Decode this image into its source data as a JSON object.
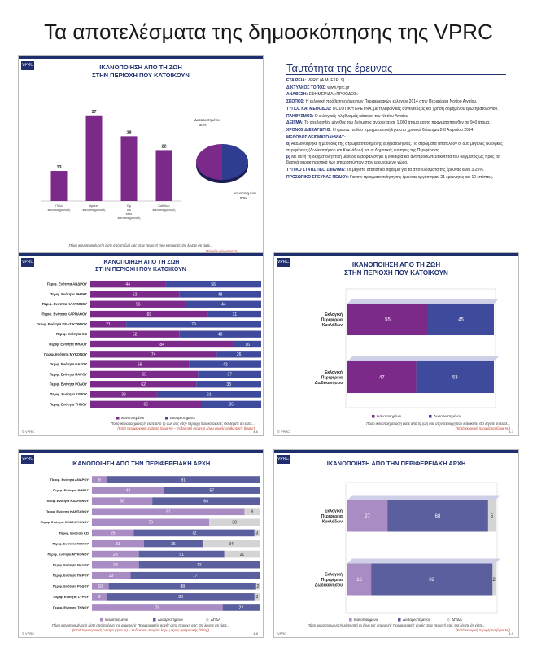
{
  "page_title": "Τα αποτελέσματα της δημοσκόπησης της VPRC",
  "logo_text": "VPRC",
  "identity": {
    "title": "Ταυτότητα της έρευνας",
    "rows": [
      {
        "k": "ΕΤΑΙΡΕΙΑ:",
        "v": " VPRC (Α.Μ. ΕΣΡ: 9)"
      },
      {
        "k": "ΔΙΚΤΥΑΚΟΣ ΤΟΠΟΣ:",
        "v": " www.vprc.gr"
      },
      {
        "k": "ΑΝΑΘΕΣΗ:",
        "v": " ΕΦΗΜΕΡΙΔΑ «ΠΡΟΟΔΟΣ»"
      },
      {
        "k": "ΣΚΟΠΟΣ:",
        "v": " Η εκλογική πρόθεση ενόψει των Περιφερειακών εκλογών 2014 στην Περιφέρεια Νοτίου Αιγαίου."
      },
      {
        "k": "ΤΥΠΟΣ ΚΑΙ ΜΕΘΟΔΟΣ:",
        "v": " ΠΟΣΟΤΙΚΗ ΕΡΕΥΝΑ, με τηλεφωνικές συνεντεύξεις και χρήση δομημένου ερωτηματολογίου."
      },
      {
        "k": "ΠΛΗΘΥΣΜΟΣ:",
        "v": " Ο εκλογικός πληθυσμός κάτοικοι του Νοτίου Αιγαίου"
      },
      {
        "k": "ΔΕΙΓΜΑ:",
        "v": " Το σχεδιασθέν μέγεθος του δείγματος ανέρχεται σε 1.000 άτομα και το πραγματοποιηθέν σε 940 άτομα."
      },
      {
        "k": "ΧΡΟΝΟΣ ΔΙΕΞΑΓΩΓΗΣ:",
        "v": " Η έρευνα πεδίου πραγματοποιήθηκε στο χρονικό διάστημα 2-8 Απριλίου 2014."
      },
      {
        "k": "ΜΕΘΟΔΟΣ ΔΕΙΓΜΑΤΟΛΗΨΙΑΣ:",
        "v": ""
      },
      {
        "k": "α)",
        "v": " Ακολουθήθηκε η μέθοδος της στρωματοποιημένης δειγματοληψίας. Το στρώματα αποτελούν οι δύο μεγάλες εκλογικές περιφέρειες (Δωδεκανήσου και Κυκλάδων) και οι Δημοτικές ενότητες της Περιφέρειας."
      },
      {
        "k": "β)",
        "v": " Με αυτή τη δειγματοληπτική μέθοδο εξασφαλίστηκε η ευκαιρία και αντιπροσωπευτικότητα του δείγματος ως προς τα βασικά χαρακτηριστικά των επικρατούντων στον ερευνώμενο χώρο."
      },
      {
        "k": "ΤΥΠΙΚΟ ΣΤΑΤΙΣΤΙΚΟ ΣΦΑΛΜΑ:",
        "v": " Το μέγιστο στατιστικό σφάλμα για τα αποτελέσματα της έρευνας είναι 3,25%."
      },
      {
        "k": "ΠΡΟΣΩΠΙΚΟ ΕΡΕΥΝΑΣ ΠΕΔΙΟΥ:",
        "v": " Για την πραγματοποίηση της έρευνας εργάστηκαν 21 ερευνητές και 10 επόπτες."
      }
    ]
  },
  "slides": {
    "s1": {
      "title": "ΙΚΑΝΟΠΟΙΗΣΗ ΑΠΟ ΤΗ ΖΩΗ",
      "subtitle": "ΣΤΗΝ ΠΕΡΙΟΧΗ ΠΟΥ ΚΑΤΟΙΚΟΥΝ",
      "footnote": "Πόσο ικανοποιημένος/η είστε από τη ζωή σας στην περιοχή που κατοικείτε; Θα λέγατε ότι είστε...",
      "note": "(Σύνολο δείγματος %)",
      "foot_left": "© VPRC",
      "foot_right": "4-5"
    },
    "s2": {
      "title": "ΙΚΑΝΟΠΟΙΗΣΗ ΑΠΟ ΤΗ ΖΩΗ",
      "subtitle": "ΣΤΗΝ ΠΕΡΙΟΧΗ ΠΟΥ ΚΑΤΟΙΚΟΥΝ",
      "footnote": "Πόσο ικανοποιημένος/η είστε από τη ζωή σας στην περιοχή που κατοικείτε; Θα λέγατε ότι είστε...",
      "note": "(Κατά περιφερειακή ενότητα (όρια %) – Ενδεικτική στοιχεία λόγω μικρής αριθμητικής βάσης)",
      "foot_left": "© VPRC",
      "foot_right": "4-6"
    },
    "s3": {
      "title": "ΙΚΑΝΟΠΟΙΗΣΗ ΑΠΟ ΤΗ ΖΩΗ",
      "subtitle": "ΣΤΗΝ ΠΕΡΙΟΧΗ ΠΟΥ ΚΑΤΟΙΚΟΥΝ",
      "footnote": "Πόσο ικανοποιημένος/η είστε από τη ζωή σας στην περιοχή που κατοικείτε; Θα λέγατε ότι είστε...",
      "note": "(Κατά εκλογική περιφέρεια (όρια %))",
      "foot_left": "© VPRC",
      "foot_right": "4-7"
    },
    "s4": {
      "title": "ΙΚΑΝΟΠΟΙΗΣΗ ΑΠΟ ΤΗΝ ΠΕΡΙΦΕΡΕΙΑΚΗ ΑΡΧΗ",
      "subtitle": "",
      "footnote": "Πόσο ικανοποιημένος/η είστε από το έργο της σημερινής Περιφερειακής αρχής στην περιοχή σας; Θα λέγατε ότι είστε...",
      "note": "(Κατά περιφερειακή ενότητα (όρια %) – Ενδεικτική στοιχεία λόγω μικρής αριθμητικής βάσης)",
      "foot_left": "© VPRC",
      "foot_right": "4-8"
    },
    "s5": {
      "title": "ΙΚΑΝΟΠΟΙΗΣΗ ΑΠΟ ΤΗΝ ΠΕΡΙΦΕΡΕΙΑΚΗ ΑΡΧΗ",
      "subtitle": "",
      "footnote": "Πόσο ικανοποιημένος/η είστε από το έργο της σημερινής Περιφερειακής αρχής στην περιοχή σας; Θα λέγατε ότι είστε...",
      "note": "(Κατά εκλογική περιφέρεια (όρια %))",
      "foot_left": "VPRC",
      "foot_right": "4-9"
    }
  },
  "chart_data": [
    {
      "type": "bar",
      "categories": [
        "Πολύ ικανοποιημένος/η",
        "Αρκετά ικανοποιημένος/η",
        "Όχι και τόσο ικανοποιημένος/η",
        "Καθόλου ικανοποιημένος/η"
      ],
      "values": [
        13,
        37,
        28,
        22
      ],
      "ylim": [
        0,
        45
      ],
      "colors": [
        "#7b2a8a",
        "#7b2a8a",
        "#7b2a8a",
        "#7b2a8a"
      ]
    },
    {
      "type": "pie",
      "slices": [
        {
          "name": "Δυσαρεστημένοι",
          "value": 50,
          "label": "Δυσαρεστημένοι 50%",
          "color": "#2e3d8f"
        },
        {
          "name": "Ικανοποιημένοι",
          "value": 50,
          "label": "Ικανοποιημένοι 50%",
          "color": "#7b2a8a"
        }
      ]
    },
    {
      "type": "bar",
      "orientation": "horizontal-stacked",
      "categories": [
        "Περιφ. Ενότητα ΑΝΔΡΟΥ",
        "Περιφ. Ενότητα ΘΗΡΑΣ",
        "Περιφ. Ενότητα ΚΑΛΥΜΝΟΥ",
        "Περιφ. Ενότητα ΚΑΡΠΑΘΟΥ",
        "Περιφ. Ενότητα ΚΕΑΣ-ΚΥΘΝΟΥ",
        "Περιφ. Ενότητα ΚΩ",
        "Περιφ. Ενότητα ΜΗΛΟΥ",
        "Περιφ. Ενότητα ΜΥΚΟΝΟΥ",
        "Περιφ. Ενότητα ΝΑΞΟΥ",
        "Περιφ. Ενότητα ΠΑΡΟΥ",
        "Περιφ. Ενότητα ΡΟΔΟΥ",
        "Περιφ. Ενότητα ΣΥΡΟΥ",
        "Περιφ. Ενότητα ΤΗΝΟΥ"
      ],
      "series": [
        {
          "name": "Ικανοποιημένοι",
          "color": "#7b2a8a",
          "values": [
            44,
            52,
            56,
            69,
            21,
            52,
            84,
            74,
            58,
            63,
            62,
            39,
            65
          ]
        },
        {
          "name": "Δυσαρεστημένοι",
          "color": "#3e4a9c",
          "values": [
            56,
            48,
            44,
            31,
            79,
            48,
            16,
            26,
            42,
            37,
            38,
            61,
            35
          ]
        }
      ],
      "xlim": [
        0,
        100
      ]
    },
    {
      "type": "bar",
      "orientation": "horizontal-stacked",
      "categories": [
        "Εκλογική Περιφέρεια Κυκλάδων",
        "Εκλογική Περιφέρεια Δωδεκανήσου"
      ],
      "series": [
        {
          "name": "Ικανοποιημένοι",
          "color": "#7b2a8a",
          "values": [
            55,
            47
          ]
        },
        {
          "name": "Δυσαρεστημένοι",
          "color": "#3e4a9c",
          "values": [
            45,
            53
          ]
        }
      ],
      "xlim": [
        0,
        100
      ]
    },
    {
      "type": "bar",
      "orientation": "horizontal-stacked",
      "categories": [
        "Περιφ. Ενότητα ΑΝΔΡΟΥ",
        "Περιφ. Ενότητα ΘΗΡΑΣ",
        "Περιφ. Ενότητα ΚΑΛΥΜΝΟΥ",
        "Περιφ. Ενότητα ΚΑΡΠΑΘΟΥ",
        "Περιφ. Ενότητα ΚΕΑΣ-ΚΥΘΝΟΥ",
        "Περιφ. Ενότητα ΚΩ",
        "Περιφ. Ενότητα ΜΗΛΟΥ",
        "Περιφ. Ενότητα ΜΥΚΟΝΟΥ",
        "Περιφ. Ενότητα ΝΑΞΟΥ",
        "Περιφ. Ενότητα ΠΑΡΟΥ",
        "Περιφ. Ενότητα ΡΟΔΟΥ",
        "Περιφ. Ενότητα ΣΥΡΟΥ",
        "Περιφ. Ενότητα ΤΗΝΟΥ"
      ],
      "series": [
        {
          "name": "Ικανοποιημένοι",
          "color": "#a98cc4",
          "values": [
            9,
            43,
            36,
            91,
            70,
            25,
            31,
            28,
            28,
            23,
            10,
            9,
            78
          ]
        },
        {
          "name": "Δυσαρεστημένοι",
          "color": "#5b5f9e",
          "values": [
            91,
            57,
            64,
            0,
            0,
            72,
            35,
            51,
            72,
            77,
            88,
            88,
            22
          ]
        },
        {
          "name": "ΔΓ/ΔΑ",
          "color": "#d4d4d4",
          "values": [
            0,
            0,
            0,
            9,
            30,
            3,
            34,
            21,
            0,
            0,
            2,
            3,
            0
          ]
        }
      ],
      "xlim": [
        0,
        100
      ]
    },
    {
      "type": "bar",
      "orientation": "horizontal-stacked",
      "categories": [
        "Εκλογική Περιφέρεια Κυκλάδων",
        "Εκλογική Περιφέρεια Δωδεκανήσου"
      ],
      "series": [
        {
          "name": "Ικανοποιημένοι",
          "color": "#a98cc4",
          "values": [
            27,
            16
          ]
        },
        {
          "name": "Δυσαρεστημένοι",
          "color": "#5b5f9e",
          "values": [
            68,
            82
          ]
        },
        {
          "name": "ΔΓ/ΔΑ",
          "color": "#d4d4d4",
          "values": [
            5,
            2
          ]
        }
      ],
      "xlim": [
        0,
        100
      ]
    }
  ]
}
